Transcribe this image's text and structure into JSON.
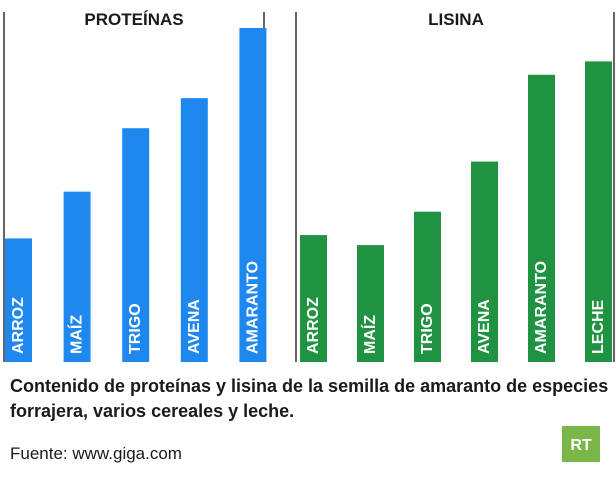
{
  "chart_data": [
    {
      "type": "bar",
      "title": "PROTEÍNAS",
      "categories": [
        "ARROZ",
        "MAÍZ",
        "TRIGO",
        "AVENA",
        "AMARANTO"
      ],
      "values": [
        37,
        51,
        70,
        79,
        100
      ],
      "ylim": [
        0,
        100
      ],
      "color": "#1e88ef",
      "xlabel": "",
      "ylabel": ""
    },
    {
      "type": "bar",
      "title": "LISINA",
      "categories": [
        "ARROZ",
        "MAÍZ",
        "TRIGO",
        "AVENA",
        "AMARANTO",
        "LECHE"
      ],
      "values": [
        38,
        35,
        45,
        60,
        86,
        90
      ],
      "ylim": [
        0,
        100
      ],
      "color": "#1f9341",
      "xlabel": "",
      "ylabel": ""
    }
  ],
  "caption": "Contenido de proteínas y lisina de la semilla de amaranto de especies forrajera, varios cereales y leche.",
  "source": "Fuente: www.giga.com",
  "logo": {
    "text": "RT",
    "color": "#7ab648"
  }
}
